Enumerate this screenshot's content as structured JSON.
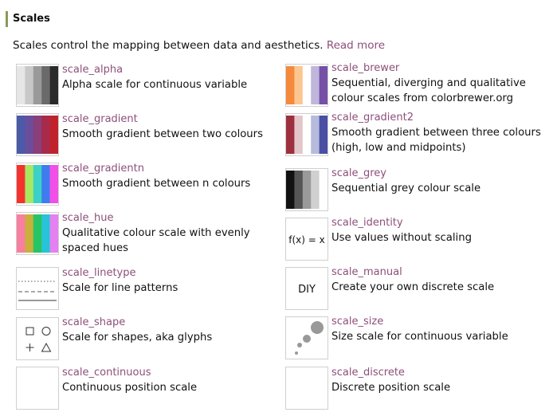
{
  "section": {
    "title": "Scales"
  },
  "intro": {
    "text": "Scales control the mapping between data and aesthetics.",
    "link": "Read more"
  },
  "left": [
    {
      "name": "scale_alpha",
      "desc": "Alpha scale for continuous variable",
      "icon": "alpha-icon"
    },
    {
      "name": "scale_gradient",
      "desc": "Smooth gradient between two colours",
      "icon": "gradient-icon"
    },
    {
      "name": "scale_gradientn",
      "desc": "Smooth gradient between n colours",
      "icon": "gradientn-icon"
    },
    {
      "name": "scale_hue",
      "desc": "Qualitative colour scale with evenly spaced hues",
      "icon": "hue-icon"
    },
    {
      "name": "scale_linetype",
      "desc": "Scale for line patterns",
      "icon": "linetype-icon"
    },
    {
      "name": "scale_shape",
      "desc": "Scale for shapes, aka glyphs",
      "icon": "shape-icon"
    },
    {
      "name": "scale_continuous",
      "desc": "Continuous position scale",
      "icon": "blank-icon"
    }
  ],
  "right": [
    {
      "name": "scale_brewer",
      "desc": "Sequential, diverging and qualitative colour scales from colorbrewer.org",
      "icon": "brewer-icon"
    },
    {
      "name": "scale_gradient2",
      "desc": "Smooth gradient between three colours (high, low and midpoints)",
      "icon": "gradient2-icon"
    },
    {
      "name": "scale_grey",
      "desc": "Sequential grey colour scale",
      "icon": "grey-icon"
    },
    {
      "name": "scale_identity",
      "desc": "Use values without scaling",
      "icon": "identity-icon",
      "icon_text": "f(x) = x"
    },
    {
      "name": "scale_manual",
      "desc": "Create your own discrete scale",
      "icon": "manual-icon",
      "icon_text": "DIY"
    },
    {
      "name": "scale_size",
      "desc": "Size scale for continuous variable",
      "icon": "size-icon"
    },
    {
      "name": "scale_discrete",
      "desc": "Discrete position scale",
      "icon": "blank-icon"
    }
  ],
  "colors": {
    "link": "#8d4f7a",
    "title_bar": "#8a9a5b",
    "alpha": [
      "#e6e6e6",
      "#c8c8c8",
      "#9a9a9a",
      "#6a6a6a",
      "#2a2a2a"
    ],
    "gradient": [
      "#4a5aa8",
      "#6a4e9c",
      "#8a3e7a",
      "#a82a4a",
      "#c0222c"
    ],
    "gradientn": [
      "#f4332f",
      "#a7e860",
      "#3bd1c6",
      "#3f7cf0",
      "#f24fe6"
    ],
    "hue": [
      "#f97fa0",
      "#c9b03c",
      "#29c463",
      "#27c3d6",
      "#e480f0"
    ],
    "brewer": [
      "#f58a3c",
      "#fcc690",
      "#ffffff",
      "#bfb7db",
      "#7550a6"
    ],
    "gradient2": [
      "#9e2f3e",
      "#e3c6c9",
      "#ffffff",
      "#b7bbdb",
      "#4a4fa4"
    ],
    "grey": [
      "#111111",
      "#555555",
      "#9a9a9a",
      "#d0d0d0",
      "#ffffff"
    ]
  }
}
